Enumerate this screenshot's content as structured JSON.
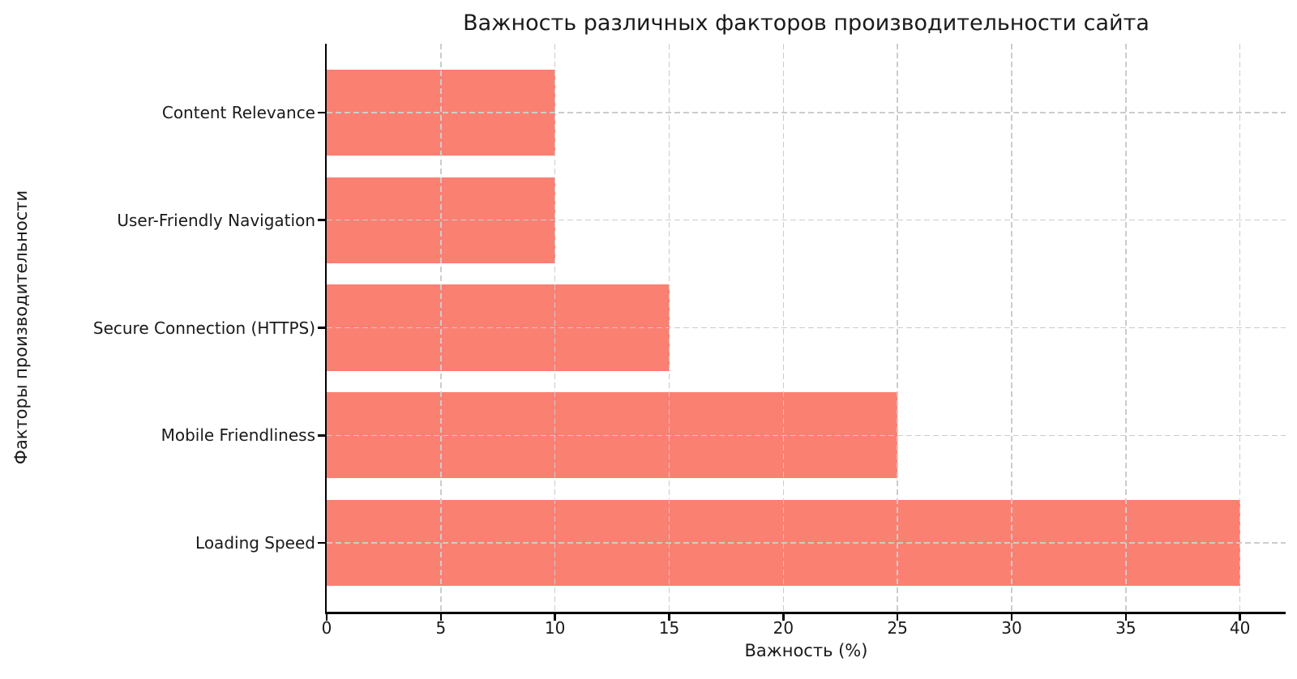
{
  "chart_data": {
    "type": "bar",
    "orientation": "horizontal",
    "title": "Важность различных факторов производительности сайта",
    "xlabel": "Важность (%)",
    "ylabel": "Факторы производительности",
    "categories": [
      "Content Relevance",
      "User-Friendly Navigation",
      "Secure Connection (HTTPS)",
      "Mobile Friendliness",
      "Loading Speed"
    ],
    "values": [
      10,
      10,
      15,
      25,
      40
    ],
    "xticks": [
      0,
      5,
      10,
      15,
      20,
      25,
      30,
      35,
      40
    ],
    "xlim": [
      0,
      42
    ],
    "grid": "dashed, both directions, drawn over bars",
    "legend": "none",
    "bar_color": "#FA8072",
    "grid_color": "#cccccc",
    "axis_color": "#000000",
    "text_color": "#1a1a1a",
    "background_color": "#ffffff"
  }
}
